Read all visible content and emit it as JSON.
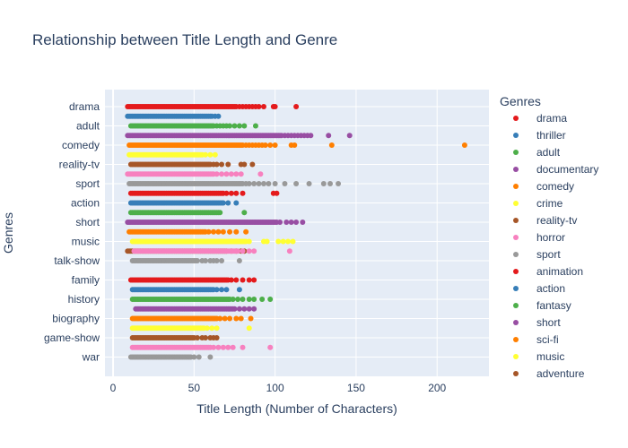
{
  "chart_data": {
    "type": "scatter",
    "title": "Relationship between Title Length and Genre",
    "xlabel": "Title Length (Number of Characters)",
    "ylabel": "Genres",
    "xlim": [
      -5,
      232
    ],
    "xticks": [
      0,
      50,
      100,
      150,
      200
    ],
    "categories": [
      "drama",
      "adult",
      "comedy",
      "reality-tv",
      "sport",
      "action",
      "short",
      "music",
      "talk-show",
      "family",
      "history",
      "biography",
      "game-show",
      "war"
    ],
    "legend_title": "Genres",
    "legend": [
      {
        "name": "drama",
        "color": "#e41a1c"
      },
      {
        "name": "thriller",
        "color": "#377eb8"
      },
      {
        "name": "adult",
        "color": "#4daf4a"
      },
      {
        "name": "documentary",
        "color": "#984ea3"
      },
      {
        "name": "comedy",
        "color": "#ff7f00"
      },
      {
        "name": "crime",
        "color": "#ffff33"
      },
      {
        "name": "reality-tv",
        "color": "#a65628"
      },
      {
        "name": "horror",
        "color": "#f781bf"
      },
      {
        "name": "sport",
        "color": "#999999"
      },
      {
        "name": "animation",
        "color": "#e41a1c"
      },
      {
        "name": "action",
        "color": "#377eb8"
      },
      {
        "name": "fantasy",
        "color": "#4daf4a"
      },
      {
        "name": "short",
        "color": "#984ea3"
      },
      {
        "name": "sci-fi",
        "color": "#ff7f00"
      },
      {
        "name": "music",
        "color": "#ffff33"
      },
      {
        "name": "adventure",
        "color": "#a65628"
      }
    ],
    "series": [
      {
        "name": "drama",
        "category": "drama",
        "offset": 0,
        "color": "#e41a1c",
        "range": [
          9,
          76
        ],
        "outliers": [
          78,
          80,
          82,
          84,
          86,
          88,
          90,
          93,
          99,
          100,
          113
        ]
      },
      {
        "name": "thriller",
        "category": "drama",
        "offset": 1,
        "color": "#377eb8",
        "range": [
          9,
          61
        ],
        "outliers": [
          63,
          65
        ]
      },
      {
        "name": "adult",
        "category": "adult",
        "offset": 0,
        "color": "#4daf4a",
        "range": [
          11,
          62
        ],
        "outliers": [
          64,
          66,
          68,
          70,
          72,
          75,
          78,
          81,
          88
        ]
      },
      {
        "name": "documentary",
        "category": "adult",
        "offset": 1,
        "color": "#984ea3",
        "range": [
          9,
          104
        ],
        "outliers": [
          106,
          108,
          110,
          112,
          114,
          116,
          118,
          120,
          122,
          133,
          146
        ]
      },
      {
        "name": "comedy",
        "category": "comedy",
        "offset": 0,
        "color": "#ff7f00",
        "range": [
          10,
          80
        ],
        "outliers": [
          82,
          84,
          86,
          88,
          90,
          92,
          94,
          97,
          100,
          110,
          112,
          135,
          217
        ]
      },
      {
        "name": "crime",
        "category": "comedy",
        "offset": 1,
        "color": "#ffff33",
        "range": [
          10,
          55
        ],
        "outliers": [
          57,
          60,
          63
        ]
      },
      {
        "name": "reality-tv",
        "category": "reality-tv",
        "offset": 0,
        "color": "#a65628",
        "range": [
          11,
          60
        ],
        "outliers": [
          62,
          64,
          67,
          71,
          79,
          81,
          86
        ]
      },
      {
        "name": "horror",
        "category": "reality-tv",
        "offset": 1,
        "color": "#f781bf",
        "range": [
          9,
          62
        ],
        "outliers": [
          64,
          67,
          70,
          73,
          76,
          79,
          91
        ]
      },
      {
        "name": "sport",
        "category": "sport",
        "offset": 0,
        "color": "#999999",
        "range": [
          10,
          80
        ],
        "outliers": [
          82,
          84,
          87,
          90,
          93,
          96,
          100,
          106,
          113,
          121,
          130,
          134,
          139
        ]
      },
      {
        "name": "animation",
        "category": "sport",
        "offset": 1,
        "color": "#e41a1c",
        "range": [
          11,
          68
        ],
        "outliers": [
          70,
          73,
          76,
          80,
          99,
          101
        ]
      },
      {
        "name": "action",
        "category": "action",
        "offset": 0,
        "color": "#377eb8",
        "range": [
          11,
          68
        ],
        "outliers": [
          71,
          76
        ]
      },
      {
        "name": "fantasy",
        "category": "action",
        "offset": 1,
        "color": "#4daf4a",
        "range": [
          11,
          66
        ],
        "outliers": [
          81
        ]
      },
      {
        "name": "short",
        "category": "short",
        "offset": 0,
        "color": "#984ea3",
        "range": [
          9,
          101
        ],
        "outliers": [
          103,
          107,
          110,
          113,
          117
        ]
      },
      {
        "name": "sci-fi",
        "category": "short",
        "offset": 1,
        "color": "#ff7f00",
        "range": [
          10,
          57
        ],
        "outliers": [
          59,
          62,
          65,
          68,
          72,
          76,
          82
        ]
      },
      {
        "name": "music",
        "category": "music",
        "offset": 0,
        "color": "#ffff33",
        "range": [
          12,
          82
        ],
        "outliers": [
          84,
          93,
          95,
          102,
          105,
          108,
          111
        ]
      },
      {
        "name": "adventure",
        "category": "music",
        "offset": 1,
        "color": "#a65628",
        "range": [
          9,
          70
        ],
        "outliers": [
          73,
          76,
          79,
          81
        ]
      },
      {
        "name": "drama",
        "category": "talk-show",
        "offset": -1,
        "color": "#f781bf",
        "range": [
          13,
          77
        ],
        "outliers": [
          80,
          84,
          87,
          109
        ]
      },
      {
        "name": "thriller",
        "category": "talk-show",
        "offset": 0,
        "color": "#999999",
        "range": [
          12,
          52
        ],
        "outliers": [
          55,
          57,
          60,
          62,
          64,
          67,
          78
        ]
      },
      {
        "name": "adult",
        "category": "family",
        "offset": 0,
        "color": "#e41a1c",
        "range": [
          11,
          71
        ],
        "outliers": [
          73,
          76,
          80,
          84,
          87
        ]
      },
      {
        "name": "documentary",
        "category": "family",
        "offset": 1,
        "color": "#377eb8",
        "range": [
          12,
          62
        ],
        "outliers": [
          64,
          67,
          70,
          78
        ]
      },
      {
        "name": "comedy",
        "category": "history",
        "offset": 0,
        "color": "#4daf4a",
        "range": [
          12,
          72
        ],
        "outliers": [
          74,
          77,
          80,
          84,
          87,
          92,
          97
        ]
      },
      {
        "name": "crime",
        "category": "history",
        "offset": 1,
        "color": "#984ea3",
        "range": [
          14,
          75
        ],
        "outliers": [
          78,
          81,
          84,
          87
        ]
      },
      {
        "name": "reality-tv",
        "category": "biography",
        "offset": 0,
        "color": "#ff7f00",
        "range": [
          12,
          64
        ],
        "outliers": [
          66,
          69,
          72,
          76,
          79,
          85
        ]
      },
      {
        "name": "horror",
        "category": "biography",
        "offset": 1,
        "color": "#ffff33",
        "range": [
          12,
          56
        ],
        "outliers": [
          58,
          61,
          64,
          84
        ]
      },
      {
        "name": "sport",
        "category": "game-show",
        "offset": 0,
        "color": "#a65628",
        "range": [
          12,
          50
        ],
        "outliers": [
          52,
          55,
          57,
          60,
          62,
          64
        ]
      },
      {
        "name": "animation",
        "category": "game-show",
        "offset": 1,
        "color": "#f781bf",
        "range": [
          12,
          60
        ],
        "outliers": [
          62,
          65,
          68,
          71,
          74,
          80,
          97
        ]
      },
      {
        "name": "action",
        "category": "war",
        "offset": 0,
        "color": "#999999",
        "range": [
          11,
          48
        ],
        "outliers": [
          50,
          53,
          60
        ]
      }
    ]
  }
}
